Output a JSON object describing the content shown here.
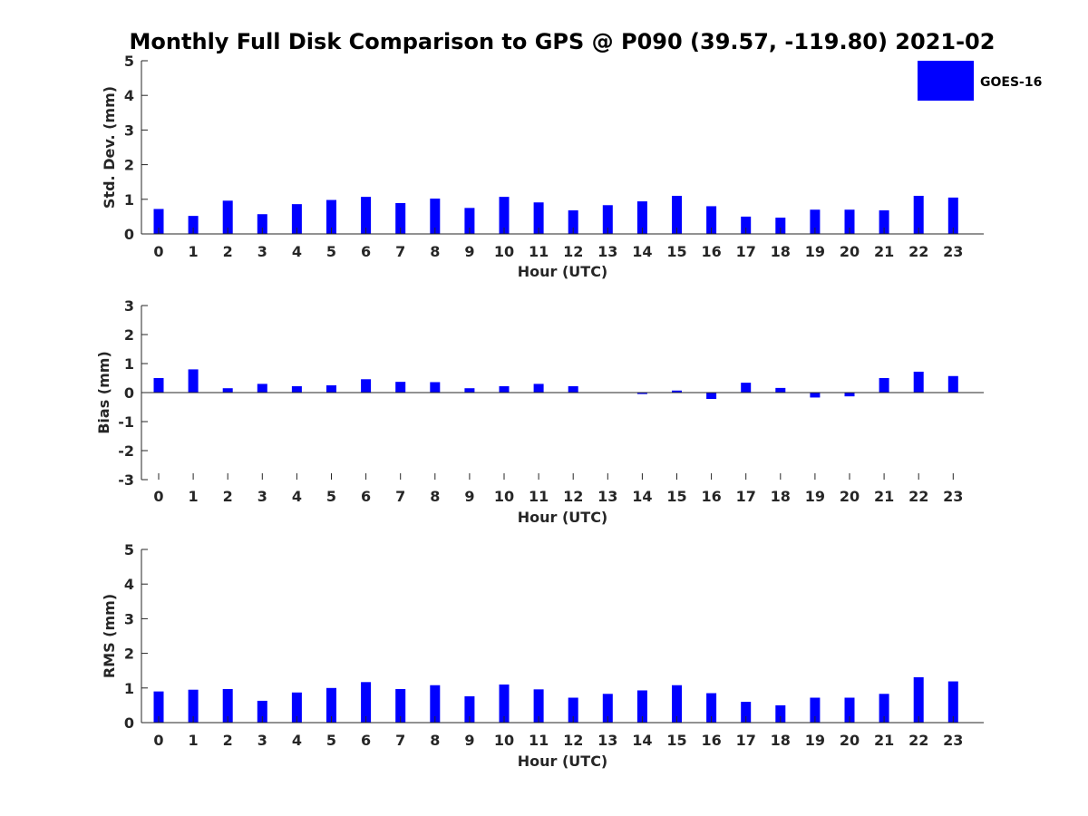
{
  "chart_data": {
    "type": "bar",
    "title": "Monthly Full Disk Comparison to GPS @ P090 (39.57, -119.80) 2021-02",
    "legend": {
      "entries": [
        "GOES-16"
      ],
      "placement": "top-right"
    },
    "colors": {
      "bar": "#0000FF",
      "axis": "#262626",
      "background": "#FFFFFF"
    },
    "categories": [
      0,
      1,
      2,
      3,
      4,
      5,
      6,
      7,
      8,
      9,
      10,
      11,
      12,
      13,
      14,
      15,
      16,
      17,
      18,
      19,
      20,
      21,
      22,
      23
    ],
    "panels": [
      {
        "id": "std",
        "xlabel": "Hour (UTC)",
        "ylabel": "Std. Dev. (mm)",
        "ylim": [
          0,
          5
        ],
        "yticks": [
          0,
          1,
          2,
          3,
          4,
          5
        ],
        "series": [
          {
            "name": "GOES-16",
            "values": [
              0.72,
              0.52,
              0.96,
              0.57,
              0.86,
              0.98,
              1.07,
              0.89,
              1.02,
              0.75,
              1.07,
              0.91,
              0.68,
              0.83,
              0.94,
              1.1,
              0.8,
              0.5,
              0.47,
              0.7,
              0.7,
              0.68,
              1.1,
              1.05
            ]
          }
        ]
      },
      {
        "id": "bias",
        "xlabel": "Hour (UTC)",
        "ylabel": "Bias (mm)",
        "ylim": [
          -3,
          3
        ],
        "yticks": [
          -3,
          -2,
          -1,
          0,
          1,
          2,
          3
        ],
        "series": [
          {
            "name": "GOES-16",
            "values": [
              0.5,
              0.8,
              0.15,
              0.3,
              0.22,
              0.25,
              0.46,
              0.37,
              0.36,
              0.15,
              0.22,
              0.3,
              0.22,
              0.0,
              -0.05,
              0.07,
              -0.22,
              0.34,
              0.16,
              -0.17,
              -0.13,
              0.5,
              0.72,
              0.57
            ]
          }
        ]
      },
      {
        "id": "rms",
        "xlabel": "Hour (UTC)",
        "ylabel": "RMS (mm)",
        "ylim": [
          0,
          5
        ],
        "yticks": [
          0,
          1,
          2,
          3,
          4,
          5
        ],
        "series": [
          {
            "name": "GOES-16",
            "values": [
              0.9,
              0.95,
              0.97,
              0.63,
              0.87,
              1.0,
              1.17,
              0.97,
              1.08,
              0.76,
              1.1,
              0.96,
              0.72,
              0.83,
              0.93,
              1.08,
              0.85,
              0.6,
              0.5,
              0.72,
              0.72,
              0.83,
              1.31,
              1.19
            ]
          }
        ]
      }
    ]
  }
}
